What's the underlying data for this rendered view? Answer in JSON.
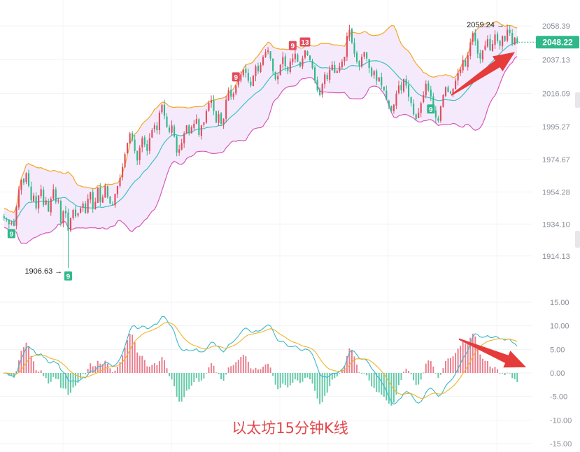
{
  "caption": "以太坊15分钟K线",
  "colors": {
    "up": "#e24c5e",
    "down": "#2fb889",
    "band_fill": "#f2e6fb",
    "band_upper": "#f5a623",
    "band_mid": "#3cc2c0",
    "band_lower": "#d858b8",
    "dif": "#3ab7c9",
    "dea": "#f0b429",
    "price_tag": "#2fb889",
    "arrow": "#e63b3b"
  },
  "chart_data": [
    {
      "type": "candlestick",
      "title": "",
      "ylim": [
        1900,
        2065
      ],
      "y_ticks": [
        "2058.39",
        "2037.13",
        "2016.09",
        "1995.27",
        "1974.67",
        "1954.28",
        "1934.10",
        "1914.13"
      ],
      "y_tick_values": [
        2058.39,
        2037.13,
        2016.09,
        1995.27,
        1974.67,
        1954.28,
        1934.1,
        1914.13
      ],
      "current_price": "2048.22",
      "current_price_value": 2048.22,
      "high_label": "2059.24",
      "high_value": 2059.24,
      "low_label": "1906.63",
      "low_value": 1906.63,
      "indicators": [
        "Bollinger Bands (upper, middle, lower)"
      ],
      "td_markers": [
        {
          "index": 3,
          "label": "9",
          "color": "green",
          "position": "below"
        },
        {
          "index": 26,
          "label": "9",
          "color": "green",
          "position": "below"
        },
        {
          "index": 94,
          "label": "9",
          "color": "red",
          "position": "above"
        },
        {
          "index": 117,
          "label": "9",
          "color": "red",
          "position": "above"
        },
        {
          "index": 122,
          "label": "13",
          "color": "red",
          "position": "above"
        },
        {
          "index": 173,
          "label": "9",
          "color": "green",
          "position": "below"
        }
      ],
      "closes": [
        1938,
        1937,
        1934,
        1935,
        1933,
        1945,
        1956,
        1962,
        1960,
        1966,
        1958,
        1949,
        1952,
        1944,
        1952,
        1956,
        1946,
        1949,
        1942,
        1950,
        1956,
        1948,
        1949,
        1935,
        1942,
        1941,
        1930,
        1938,
        1943,
        1939,
        1941,
        1944,
        1947,
        1941,
        1950,
        1954,
        1944,
        1948,
        1957,
        1948,
        1951,
        1958,
        1951,
        1947,
        1946,
        1953,
        1958,
        1963,
        1970,
        1978,
        1985,
        1991,
        1987,
        1980,
        1974,
        1982,
        1988,
        1984,
        1980,
        1988,
        1993,
        1996,
        1993,
        2004,
        2009,
        2002,
        1995,
        1992,
        1996,
        1989,
        1979,
        1981,
        1985,
        1991,
        1996,
        1991,
        1995,
        1997,
        2000,
        1990,
        1996,
        1998,
        2005,
        2010,
        2012,
        2005,
        1998,
        2003,
        1997,
        2000,
        2012,
        2018,
        2014,
        2016,
        2021,
        2024,
        2028,
        2031,
        2029,
        2024,
        2021,
        2027,
        2033,
        2030,
        2034,
        2039,
        2042,
        2043,
        2038,
        2030,
        2025,
        2027,
        2034,
        2039,
        2033,
        2030,
        2036,
        2038,
        2041,
        2036,
        2033,
        2038,
        2043,
        2040,
        2037,
        2032,
        2024,
        2018,
        2015,
        2022,
        2028,
        2025,
        2031,
        2034,
        2029,
        2030,
        2033,
        2036,
        2039,
        2052,
        2056,
        2048,
        2041,
        2036,
        2033,
        2039,
        2042,
        2038,
        2032,
        2027,
        2030,
        2024,
        2026,
        2021,
        2018,
        2012,
        2008,
        2005,
        2009,
        2016,
        2021,
        2018,
        2025,
        2021,
        2014,
        2010,
        2003,
        2000,
        2004,
        2010,
        2015,
        2022,
        2018,
        2014,
        2006,
        2001,
        1999,
        2008,
        2015,
        2020,
        2017,
        2016,
        2019,
        2024,
        2029,
        2031,
        2037,
        2033,
        2040,
        2048,
        2054,
        2049,
        2041,
        2038,
        2043,
        2046,
        2050,
        2043,
        2047,
        2053,
        2049,
        2046,
        2052,
        2049,
        2056,
        2054,
        2047,
        2051,
        2048
      ],
      "macd": {
        "ylim": [
          -15,
          15
        ],
        "y_ticks": [
          "15.00",
          "10.00",
          "5.00",
          "0.00",
          "-5.00",
          "-10.00",
          "-15.00"
        ],
        "y_tick_values": [
          15,
          10,
          5,
          0,
          -5,
          -10,
          -15
        ],
        "series": [
          {
            "type": "histogram"
          },
          {
            "type": "line"
          },
          {
            "type": "line"
          }
        ]
      },
      "annotations": [
        {
          "type": "arrow",
          "from": [
            640,
            2015
          ],
          "to": [
            178,
            2041
          ]
        },
        {
          "type": "arrow",
          "from": [
            655,
            7.0
          ],
          "to": [
            208,
            1.0
          ]
        }
      ]
    }
  ]
}
